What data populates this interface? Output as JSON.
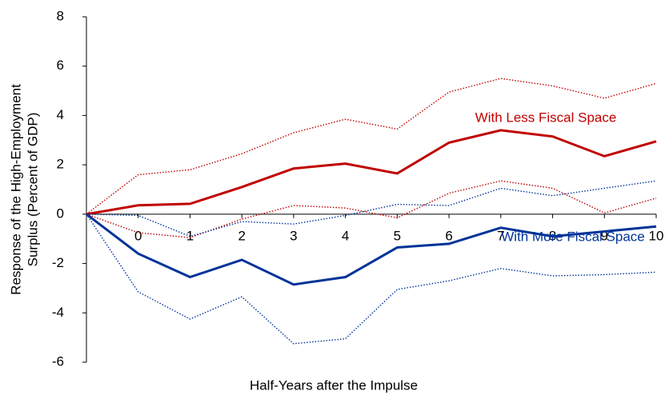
{
  "chart_data": {
    "type": "line",
    "y_label_lines": [
      "Response of the High-Employment",
      "Surplus (Percent of GDP)"
    ],
    "x_label": "Half-Years after the Impulse",
    "x": [
      -1,
      0,
      1,
      2,
      3,
      4,
      5,
      6,
      7,
      8,
      9,
      10
    ],
    "xlim": [
      -1,
      10
    ],
    "xticks": [
      0,
      1,
      2,
      3,
      4,
      5,
      6,
      7,
      8,
      9,
      10
    ],
    "ylim": [
      -6,
      8
    ],
    "yticks": [
      -6,
      -4,
      -2,
      0,
      2,
      4,
      6,
      8
    ],
    "grid": false,
    "series": [
      {
        "name": "With Less Fiscal Space",
        "color": "#c00000",
        "style": "solid",
        "label_at": "upper",
        "values": [
          0,
          0.36,
          0.42,
          1.1,
          1.85,
          2.05,
          1.65,
          2.9,
          3.4,
          3.15,
          2.35,
          2.95
        ]
      },
      {
        "color": "#c00000",
        "style": "dotted",
        "values": [
          0,
          1.6,
          1.8,
          2.45,
          3.3,
          3.85,
          3.45,
          4.95,
          5.5,
          5.2,
          4.7,
          5.3
        ]
      },
      {
        "color": "#c00000",
        "style": "dotted",
        "values": [
          0,
          -0.75,
          -0.95,
          -0.2,
          0.35,
          0.25,
          -0.15,
          0.85,
          1.35,
          1.05,
          0.05,
          0.65
        ]
      },
      {
        "name": "With More Fiscal Space",
        "color": "#003399",
        "style": "solid",
        "label_at": "lower",
        "values": [
          0,
          -1.6,
          -2.55,
          -1.85,
          -2.85,
          -2.55,
          -1.35,
          -1.2,
          -0.55,
          -0.9,
          -0.7,
          -0.5
        ]
      },
      {
        "color": "#003399",
        "style": "dotted",
        "values": [
          0,
          -0.05,
          -0.9,
          -0.3,
          -0.4,
          -0.05,
          0.4,
          0.35,
          1.05,
          0.75,
          1.05,
          1.35
        ]
      },
      {
        "color": "#003399",
        "style": "dotted",
        "values": [
          0,
          -3.15,
          -4.25,
          -3.35,
          -5.25,
          -5.05,
          -3.05,
          -2.7,
          -2.2,
          -2.5,
          -2.45,
          -2.35
        ]
      }
    ]
  }
}
